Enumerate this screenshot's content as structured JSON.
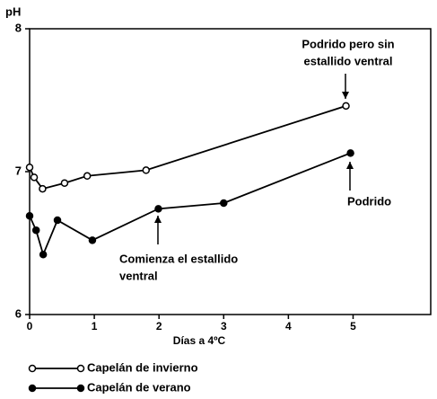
{
  "chart_data": {
    "type": "line",
    "y_label": "pH",
    "x_label": "Días a 4ºC",
    "xlim": [
      0,
      6.2
    ],
    "xticks": [
      0,
      1,
      2,
      3,
      4,
      5
    ],
    "ylim": [
      6,
      8
    ],
    "yticks": [
      6,
      7,
      8
    ],
    "series": [
      {
        "name": "Capelán de invierno",
        "color": "#000000",
        "marker_fill": "#ffffff",
        "x": [
          0,
          0.07,
          0.2,
          0.54,
          0.89,
          1.8,
          4.89
        ],
        "values": [
          7.03,
          6.96,
          6.88,
          6.92,
          6.97,
          7.01,
          7.46
        ]
      },
      {
        "name": "Capelán de verano",
        "color": "#000000",
        "marker_fill": "#000000",
        "x": [
          0,
          0.1,
          0.21,
          0.43,
          0.97,
          1.99,
          3.0,
          4.96
        ],
        "values": [
          6.69,
          6.59,
          6.42,
          6.66,
          6.52,
          6.74,
          6.78,
          7.13
        ]
      }
    ],
    "annotations": [
      {
        "lines": [
          "Podrido pero sin",
          "estallido ventral"
        ]
      },
      {
        "lines": [
          "Podrido"
        ]
      },
      {
        "lines": [
          "Comienza el estallido",
          "ventral"
        ]
      }
    ]
  }
}
